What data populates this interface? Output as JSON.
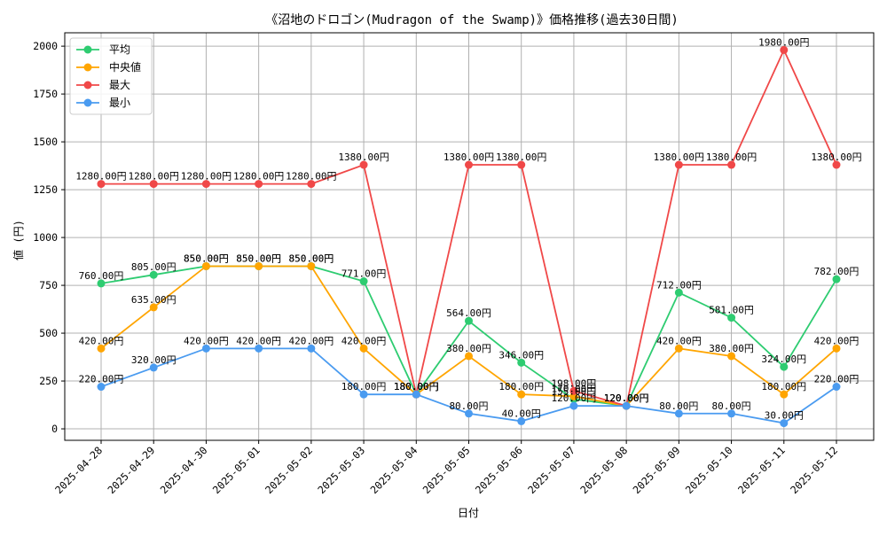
{
  "chart_data": {
    "type": "line",
    "title": "《沼地のドロゴン(Mudragon of the Swamp)》価格推移(過去30日間)",
    "xlabel": "日付",
    "ylabel": "値 (円)",
    "ylim": [
      -60,
      2070
    ],
    "yticks": [
      0,
      250,
      500,
      750,
      1000,
      1250,
      1500,
      1750,
      2000
    ],
    "grid": true,
    "legend_position": "top-left",
    "value_suffix": "円",
    "categories": [
      "2025-04-28",
      "2025-04-29",
      "2025-04-30",
      "2025-05-01",
      "2025-05-02",
      "2025-05-03",
      "2025-05-04",
      "2025-05-05",
      "2025-05-06",
      "2025-05-07",
      "2025-05-08",
      "2025-05-09",
      "2025-05-10",
      "2025-05-11",
      "2025-05-12"
    ],
    "series": [
      {
        "name": "平均",
        "color": "#2ecc71",
        "values": [
          760,
          805,
          850,
          850,
          850,
          771,
          180,
          564,
          346,
          155,
          120,
          712,
          581,
          324,
          782
        ],
        "labels": [
          "760.00円",
          "805.00円",
          "850.00円",
          "850.00円",
          "850.00円",
          "771.00円",
          "180.00円",
          "564.00円",
          "346.00円",
          "155.00円",
          "120.00円",
          "712.00円",
          "581.00円",
          "324.00円",
          "782.00円"
        ]
      },
      {
        "name": "中央値",
        "color": "#ffa500",
        "values": [
          420,
          635,
          850,
          850,
          850,
          420,
          180,
          380,
          180,
          170,
          120,
          420,
          380,
          180,
          420
        ],
        "labels": [
          "420.00円",
          "635.00円",
          "850.00円",
          "850.00円",
          "850.00円",
          "420.00円",
          "180.00円",
          "380.00円",
          "180.00円",
          "170.00円",
          "120.00円",
          "420.00円",
          "380.00円",
          "180.00円",
          "420.00円"
        ]
      },
      {
        "name": "最大",
        "color": "#f04848",
        "values": [
          1280,
          1280,
          1280,
          1280,
          1280,
          1380,
          180,
          1380,
          1380,
          198,
          120,
          1380,
          1380,
          1980,
          1380
        ],
        "labels": [
          "1280.00円",
          "1280.00円",
          "1280.00円",
          "1280.00円",
          "1280.00円",
          "1380.00円",
          "180.00円",
          "1380.00円",
          "1380.00円",
          "198.00円",
          "120.00円",
          "1380.00円",
          "1380.00円",
          "1980.00円",
          "1380.00円"
        ]
      },
      {
        "name": "最小",
        "color": "#4a9bf0",
        "values": [
          220,
          320,
          420,
          420,
          420,
          180,
          180,
          80,
          40,
          120,
          120,
          80,
          80,
          30,
          220
        ],
        "labels": [
          "220.00円",
          "320.00円",
          "420.00円",
          "420.00円",
          "420.00円",
          "180.00円",
          "180.00円",
          "80.00円",
          "40.00円",
          "120.00円",
          "120.00円",
          "80.00円",
          "80.00円",
          "30.00円",
          "220.00円"
        ]
      }
    ]
  }
}
